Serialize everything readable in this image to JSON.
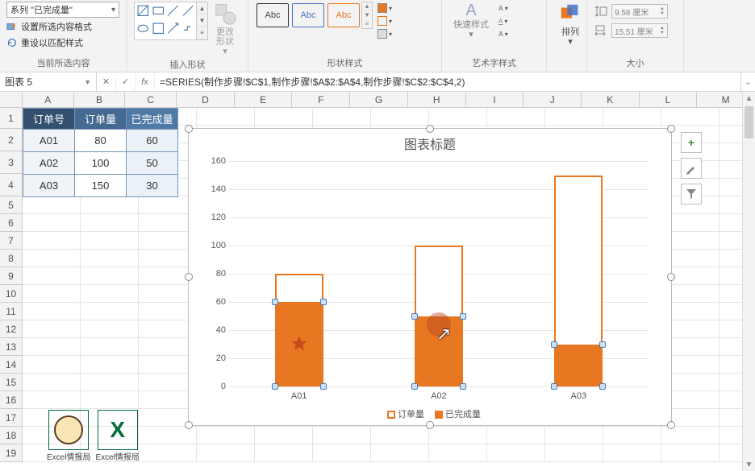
{
  "ribbon": {
    "selection_series": "系列 \"已完成量\"",
    "format_selection": "设置所选内容格式",
    "reset_style": "重设以匹配样式",
    "group_current": "当前所选内容",
    "change_shape": "更改形状",
    "group_insert": "插入形状",
    "abc": "Abc",
    "group_shape_style": "形状样式",
    "quick_style": "快速样式",
    "group_wordart": "艺术字样式",
    "arrange": "排列",
    "height_val": "9.58 厘米",
    "width_val": "15.51 厘米",
    "group_size": "大小"
  },
  "namebox": "图表 5",
  "formula": "=SERIES(制作步骤!$C$1,制作步骤!$A$2:$A$4,制作步骤!$C$2:$C$4,2)",
  "columns": [
    "A",
    "B",
    "C",
    "D",
    "E",
    "F",
    "G",
    "H",
    "I",
    "J",
    "K",
    "L",
    "M"
  ],
  "table": {
    "headers": [
      "订单号",
      "订单量",
      "已完成量"
    ],
    "rows": [
      [
        "A01",
        "80",
        "60"
      ],
      [
        "A02",
        "100",
        "50"
      ],
      [
        "A03",
        "150",
        "30"
      ]
    ]
  },
  "chart": {
    "title": "图表标题",
    "y_max": 160,
    "y_step": 20,
    "categories": [
      "A01",
      "A02",
      "A03"
    ],
    "series_outer_name": "订单量",
    "series_inner_name": "已完成量",
    "outer_vals": [
      80,
      100,
      150
    ],
    "inner_vals": [
      60,
      50,
      30
    ],
    "color_border": "#e87722",
    "color_fill": "#e87722"
  },
  "side": {
    "add": "+",
    "brush": "✎",
    "filter": "▼"
  },
  "watermark": "Excel情报局"
}
